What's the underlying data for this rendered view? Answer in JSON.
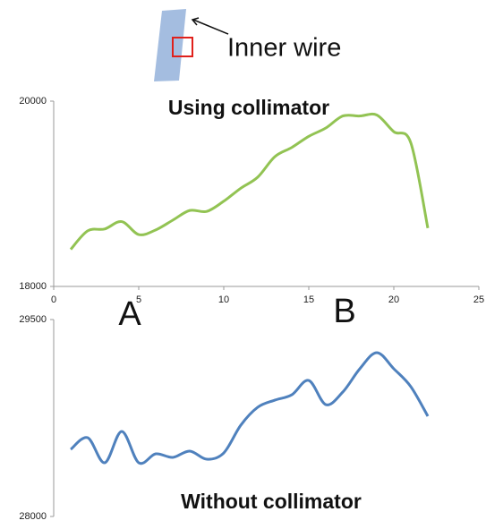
{
  "annotations": {
    "icon_label": "Inner wire",
    "left": "A",
    "right": "B"
  },
  "chart_data": [
    {
      "type": "line",
      "title": "Using collimator",
      "x": [
        1,
        2,
        3,
        4,
        5,
        6,
        7,
        8,
        9,
        10,
        11,
        12,
        13,
        14,
        15,
        16,
        17,
        18,
        19,
        20,
        21,
        22
      ],
      "series": [
        {
          "color": "#92c353",
          "values": [
            18400,
            18600,
            18620,
            18700,
            18560,
            18610,
            18715,
            18820,
            18810,
            18920,
            19060,
            19180,
            19400,
            19500,
            19620,
            19710,
            19840,
            19840,
            19850,
            19670,
            19550,
            18630
          ]
        }
      ],
      "xlim": [
        0,
        25
      ],
      "xticks": [
        0,
        5,
        10,
        15,
        20,
        25
      ],
      "ylim": [
        18000,
        20000
      ],
      "yticks": [
        18000,
        20000
      ]
    },
    {
      "type": "line",
      "title": "Without collimator",
      "x": [
        1,
        2,
        3,
        4,
        5,
        6,
        7,
        8,
        9,
        10,
        11,
        12,
        13,
        14,
        15,
        16,
        17,
        18,
        19,
        20,
        21,
        22
      ],
      "series": [
        {
          "color": "#4f81bd",
          "values": [
            28511,
            28600,
            28409,
            28648,
            28409,
            28477,
            28450,
            28498,
            28436,
            28484,
            28695,
            28832,
            28886,
            28927,
            29036,
            28852,
            28948,
            29125,
            29248,
            29125,
            28989,
            28764
          ]
        }
      ],
      "xlim": [
        0,
        25
      ],
      "ylim": [
        28000,
        29500
      ],
      "yticks": [
        28000,
        29500
      ]
    }
  ]
}
